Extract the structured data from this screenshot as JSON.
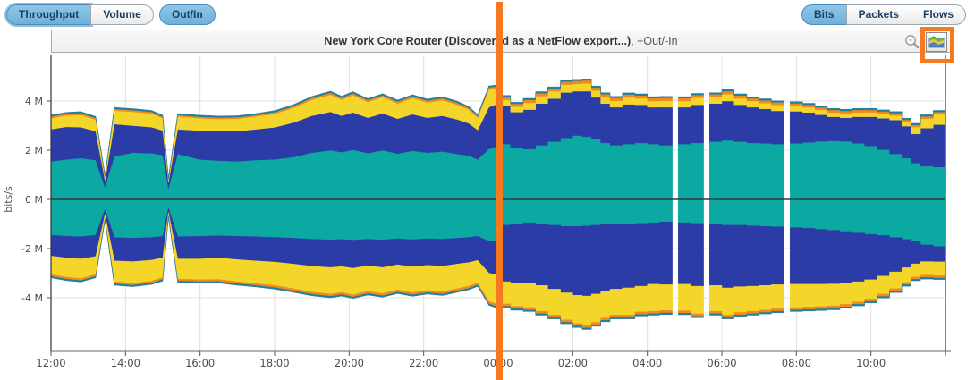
{
  "toolbar": {
    "left": [
      {
        "label": "Throughput",
        "selected": true
      },
      {
        "label": "Volume",
        "selected": false
      }
    ],
    "out_in_label": "Out/In",
    "right": [
      {
        "label": "Bits",
        "selected": true
      },
      {
        "label": "Packets",
        "selected": false
      },
      {
        "label": "Flows",
        "selected": false
      }
    ]
  },
  "chart_header": {
    "title": "New York Core Router (Discovered as a NetFlow export...)",
    "suffix": ", +Out/-In",
    "icons": [
      "zoom-out-icon",
      "area-chart-style-icon"
    ]
  },
  "annotations": {
    "highlight_color": "#f4791f",
    "marker_color": "#f4791f",
    "marker_time_label": "00:00"
  },
  "chart_data": {
    "type": "stacked-area-bidirectional",
    "title": "New York Core Router (Discovered as a NetFlow export...), +Out/-In",
    "ylabel": "bits/s",
    "value_unit": "Mbit/s (values are millions of bits per second; positive = Out, negative = In)",
    "xrange_hours": 24,
    "ylim_m": [
      -6.2,
      5.85
    ],
    "grid": true,
    "legend": "none",
    "yticks": [
      {
        "v": 4,
        "label": "4 M"
      },
      {
        "v": 2,
        "label": "2 M"
      },
      {
        "v": 0,
        "label": "0 M"
      },
      {
        "v": -2,
        "label": "-2 M"
      },
      {
        "v": -4,
        "label": "-4 M"
      }
    ],
    "xticks": [
      {
        "t": 0,
        "label": "12:00"
      },
      {
        "t": 2,
        "label": "14:00"
      },
      {
        "t": 4,
        "label": "16:00"
      },
      {
        "t": 6,
        "label": "18:00"
      },
      {
        "t": 8,
        "label": "20:00"
      },
      {
        "t": 10,
        "label": "22:00"
      },
      {
        "t": 12,
        "label": "00:00"
      },
      {
        "t": 14,
        "label": "02:00"
      },
      {
        "t": 16,
        "label": "04:00"
      },
      {
        "t": 18,
        "label": "06:00"
      },
      {
        "t": 20,
        "label": "08:00"
      },
      {
        "t": 22,
        "label": "10:00"
      }
    ],
    "series": [
      {
        "name": "series-teal",
        "color": "#0ca8a2"
      },
      {
        "name": "series-blue",
        "color": "#2c3ca6"
      },
      {
        "name": "series-yellow",
        "color": "#f4d62b"
      },
      {
        "name": "series-orange",
        "color": "#f18a1e"
      },
      {
        "name": "series-cap",
        "color": "#1f7fa0"
      }
    ],
    "cap_value": 0.06,
    "step_from_hour": 12,
    "step_width_hours": 0.34,
    "marker_hour": 12.03,
    "colors": {
      "grid": "#e0e0e0",
      "axis": "#555555",
      "zero_line": "#2b3d3d",
      "border": "#333333",
      "tick_text": "#4a4a4a"
    },
    "samples": [
      [
        0.0,
        [
          1.55,
          1.3,
          0.45,
          0.07
        ],
        [
          1.45,
          0.85,
          0.75,
          0.08
        ]
      ],
      [
        0.4,
        [
          1.62,
          1.33,
          0.46,
          0.07
        ],
        [
          1.5,
          0.88,
          0.78,
          0.08
        ]
      ],
      [
        0.8,
        [
          1.68,
          1.26,
          0.5,
          0.07
        ],
        [
          1.52,
          0.9,
          0.8,
          0.08
        ]
      ],
      [
        1.2,
        [
          1.6,
          1.18,
          0.46,
          0.07
        ],
        [
          1.46,
          0.86,
          0.73,
          0.08
        ]
      ],
      [
        1.45,
        [
          0.5,
          0.28,
          0.12,
          0.04
        ],
        [
          0.42,
          0.2,
          0.15,
          0.04
        ]
      ],
      [
        1.7,
        [
          1.76,
          1.3,
          0.55,
          0.07
        ],
        [
          1.55,
          0.95,
          0.85,
          0.08
        ]
      ],
      [
        2.2,
        [
          1.9,
          1.1,
          0.56,
          0.07
        ],
        [
          1.58,
          0.95,
          0.88,
          0.08
        ]
      ],
      [
        2.7,
        [
          1.88,
          1.06,
          0.55,
          0.07
        ],
        [
          1.55,
          0.92,
          0.85,
          0.08
        ]
      ],
      [
        3.0,
        [
          1.8,
          1.0,
          0.5,
          0.06
        ],
        [
          1.5,
          0.88,
          0.8,
          0.08
        ]
      ],
      [
        3.15,
        [
          0.45,
          0.25,
          0.1,
          0.04
        ],
        [
          0.35,
          0.18,
          0.12,
          0.04
        ]
      ],
      [
        3.4,
        [
          1.85,
          1.0,
          0.52,
          0.06
        ],
        [
          1.52,
          0.9,
          0.82,
          0.08
        ]
      ],
      [
        4.0,
        [
          1.62,
          1.18,
          0.5,
          0.06
        ],
        [
          1.5,
          0.92,
          0.85,
          0.08
        ]
      ],
      [
        4.5,
        [
          1.58,
          1.21,
          0.48,
          0.06
        ],
        [
          1.48,
          0.9,
          0.88,
          0.08
        ]
      ],
      [
        5.0,
        [
          1.55,
          1.23,
          0.5,
          0.06
        ],
        [
          1.5,
          0.95,
          0.9,
          0.08
        ]
      ],
      [
        5.5,
        [
          1.6,
          1.25,
          0.52,
          0.06
        ],
        [
          1.52,
          0.98,
          0.92,
          0.08
        ]
      ],
      [
        6.0,
        [
          1.63,
          1.3,
          0.55,
          0.07
        ],
        [
          1.55,
          1.0,
          0.95,
          0.09
        ]
      ],
      [
        6.5,
        [
          1.72,
          1.4,
          0.6,
          0.07
        ],
        [
          1.58,
          1.05,
          1.0,
          0.09
        ]
      ],
      [
        7.0,
        [
          1.9,
          1.5,
          0.65,
          0.08
        ],
        [
          1.62,
          1.1,
          1.05,
          0.09
        ]
      ],
      [
        7.5,
        [
          2.0,
          1.56,
          0.7,
          0.08
        ],
        [
          1.65,
          1.12,
          1.08,
          0.09
        ]
      ],
      [
        7.8,
        [
          1.92,
          1.48,
          0.66,
          0.08
        ],
        [
          1.63,
          1.1,
          1.05,
          0.09
        ]
      ],
      [
        8.1,
        [
          2.02,
          1.52,
          0.7,
          0.08
        ],
        [
          1.66,
          1.14,
          1.08,
          0.09
        ]
      ],
      [
        8.5,
        [
          1.88,
          1.44,
          0.64,
          0.08
        ],
        [
          1.62,
          1.08,
          1.04,
          0.09
        ]
      ],
      [
        8.9,
        [
          2.0,
          1.5,
          0.66,
          0.08
        ],
        [
          1.65,
          1.12,
          1.06,
          0.09
        ]
      ],
      [
        9.3,
        [
          1.86,
          1.42,
          0.62,
          0.08
        ],
        [
          1.6,
          1.06,
          1.02,
          0.09
        ]
      ],
      [
        9.7,
        [
          1.98,
          1.48,
          0.66,
          0.08
        ],
        [
          1.64,
          1.1,
          1.05,
          0.09
        ]
      ],
      [
        10.1,
        [
          1.9,
          1.42,
          0.62,
          0.08
        ],
        [
          1.6,
          1.08,
          1.02,
          0.09
        ]
      ],
      [
        10.5,
        [
          1.95,
          1.45,
          0.64,
          0.08
        ],
        [
          1.62,
          1.1,
          1.04,
          0.09
        ]
      ],
      [
        10.9,
        [
          1.85,
          1.4,
          0.6,
          0.08
        ],
        [
          1.58,
          1.05,
          1.0,
          0.09
        ]
      ],
      [
        11.2,
        [
          1.78,
          1.32,
          0.56,
          0.07
        ],
        [
          1.55,
          1.02,
          0.96,
          0.09
        ]
      ],
      [
        11.45,
        [
          1.62,
          1.2,
          0.5,
          0.07
        ],
        [
          1.5,
          0.98,
          0.92,
          0.08
        ]
      ],
      [
        11.75,
        [
          2.05,
          1.7,
          0.72,
          0.09
        ],
        [
          1.7,
          1.3,
          1.15,
          0.1
        ]
      ],
      [
        11.95,
        [
          2.15,
          1.72,
          0.62,
          0.1
        ],
        [
          1.72,
          1.35,
          1.18,
          0.1
        ]
      ],
      [
        12.0,
        [
          2.25,
          1.55,
          0.25,
          0.12
        ],
        [
          1.05,
          2.3,
          0.9,
          0.1
        ]
      ],
      [
        12.33,
        [
          2.1,
          1.45,
          0.22,
          0.12
        ],
        [
          1.0,
          2.4,
          0.95,
          0.1
        ]
      ],
      [
        12.67,
        [
          2.05,
          1.6,
          0.28,
          0.12
        ],
        [
          0.95,
          2.45,
          1.0,
          0.1
        ]
      ],
      [
        13.0,
        [
          2.2,
          1.7,
          0.3,
          0.12
        ],
        [
          1.0,
          2.5,
          1.05,
          0.1
        ]
      ],
      [
        13.33,
        [
          2.35,
          1.75,
          0.3,
          0.12
        ],
        [
          1.05,
          2.6,
          1.05,
          0.1
        ]
      ],
      [
        13.67,
        [
          2.5,
          1.85,
          0.32,
          0.12
        ],
        [
          1.1,
          2.7,
          1.1,
          0.1
        ]
      ],
      [
        14.0,
        [
          2.6,
          1.8,
          0.3,
          0.12
        ],
        [
          1.1,
          2.8,
          1.15,
          0.1
        ]
      ],
      [
        14.25,
        [
          2.55,
          1.85,
          0.32,
          0.12
        ],
        [
          1.08,
          2.85,
          1.2,
          0.1
        ]
      ],
      [
        14.5,
        [
          2.45,
          1.7,
          0.28,
          0.12
        ],
        [
          1.05,
          2.8,
          1.15,
          0.1
        ]
      ],
      [
        14.75,
        [
          2.3,
          1.6,
          0.26,
          0.12
        ],
        [
          1.02,
          2.7,
          1.1,
          0.1
        ]
      ],
      [
        15.0,
        [
          2.2,
          1.55,
          0.26,
          0.12
        ],
        [
          1.0,
          2.65,
          1.05,
          0.1
        ]
      ],
      [
        15.33,
        [
          2.25,
          1.62,
          0.28,
          0.12
        ],
        [
          1.0,
          2.6,
          1.1,
          0.1
        ]
      ],
      [
        15.67,
        [
          2.3,
          1.55,
          0.26,
          0.12
        ],
        [
          0.98,
          2.55,
          1.05,
          0.1
        ]
      ],
      [
        16.0,
        [
          2.25,
          1.5,
          0.25,
          0.12
        ],
        [
          0.95,
          2.5,
          1.1,
          0.1
        ]
      ],
      [
        16.33,
        [
          2.2,
          1.55,
          0.26,
          0.12
        ],
        [
          0.92,
          2.55,
          1.05,
          0.1
        ]
      ],
      [
        16.58,
        null,
        null
      ],
      [
        16.83,
        [
          2.25,
          1.5,
          0.25,
          0.12
        ],
        [
          0.95,
          2.5,
          1.08,
          0.1
        ]
      ],
      [
        17.17,
        [
          2.3,
          1.55,
          0.28,
          0.12
        ],
        [
          0.98,
          2.55,
          1.12,
          0.1
        ]
      ],
      [
        17.42,
        null,
        null
      ],
      [
        17.67,
        [
          2.35,
          1.55,
          0.26,
          0.12
        ],
        [
          1.0,
          2.5,
          1.05,
          0.1
        ]
      ],
      [
        18.0,
        [
          2.4,
          1.6,
          0.28,
          0.12
        ],
        [
          1.05,
          2.55,
          1.1,
          0.1
        ]
      ],
      [
        18.33,
        [
          2.35,
          1.5,
          0.26,
          0.12
        ],
        [
          1.05,
          2.5,
          1.05,
          0.1
        ]
      ],
      [
        18.67,
        [
          2.3,
          1.45,
          0.25,
          0.11
        ],
        [
          1.08,
          2.45,
          1.02,
          0.1
        ]
      ],
      [
        19.0,
        [
          2.28,
          1.4,
          0.24,
          0.11
        ],
        [
          1.1,
          2.4,
          1.0,
          0.1
        ]
      ],
      [
        19.33,
        [
          2.25,
          1.35,
          0.24,
          0.11
        ],
        [
          1.12,
          2.35,
          0.98,
          0.1
        ]
      ],
      [
        19.58,
        null,
        null
      ],
      [
        19.83,
        [
          2.28,
          1.3,
          0.22,
          0.11
        ],
        [
          1.15,
          2.3,
          0.95,
          0.1
        ]
      ],
      [
        20.17,
        [
          2.32,
          1.22,
          0.21,
          0.1
        ],
        [
          1.18,
          2.27,
          0.93,
          0.1
        ]
      ],
      [
        20.5,
        [
          2.36,
          1.08,
          0.2,
          0.1
        ],
        [
          1.22,
          2.23,
          0.91,
          0.1
        ]
      ],
      [
        20.83,
        [
          2.38,
          0.98,
          0.18,
          0.1
        ],
        [
          1.26,
          2.18,
          0.89,
          0.1
        ]
      ],
      [
        21.17,
        [
          2.36,
          0.96,
          0.18,
          0.1
        ],
        [
          1.31,
          2.1,
          0.86,
          0.1
        ]
      ],
      [
        21.5,
        [
          2.28,
          1.08,
          0.18,
          0.1
        ],
        [
          1.37,
          1.98,
          0.82,
          0.1
        ]
      ],
      [
        21.83,
        [
          2.18,
          1.18,
          0.18,
          0.1
        ],
        [
          1.42,
          1.85,
          0.78,
          0.1
        ]
      ],
      [
        22.17,
        [
          2.02,
          1.28,
          0.18,
          0.1
        ],
        [
          1.47,
          1.65,
          0.73,
          0.1
        ]
      ],
      [
        22.5,
        [
          1.85,
          1.38,
          0.18,
          0.1
        ],
        [
          1.55,
          1.4,
          0.68,
          0.1
        ]
      ],
      [
        22.83,
        [
          1.68,
          1.3,
          0.17,
          0.09
        ],
        [
          1.63,
          1.15,
          0.6,
          0.09
        ]
      ],
      [
        23.08,
        [
          1.48,
          1.18,
          0.28,
          0.09
        ],
        [
          1.72,
          0.9,
          0.54,
          0.09
        ]
      ],
      [
        23.33,
        [
          1.35,
          1.55,
          0.38,
          0.1
        ],
        [
          1.85,
          0.68,
          0.55,
          0.1
        ]
      ],
      [
        23.67,
        [
          1.32,
          1.72,
          0.42,
          0.1
        ],
        [
          1.92,
          0.62,
          0.56,
          0.1
        ]
      ]
    ]
  }
}
